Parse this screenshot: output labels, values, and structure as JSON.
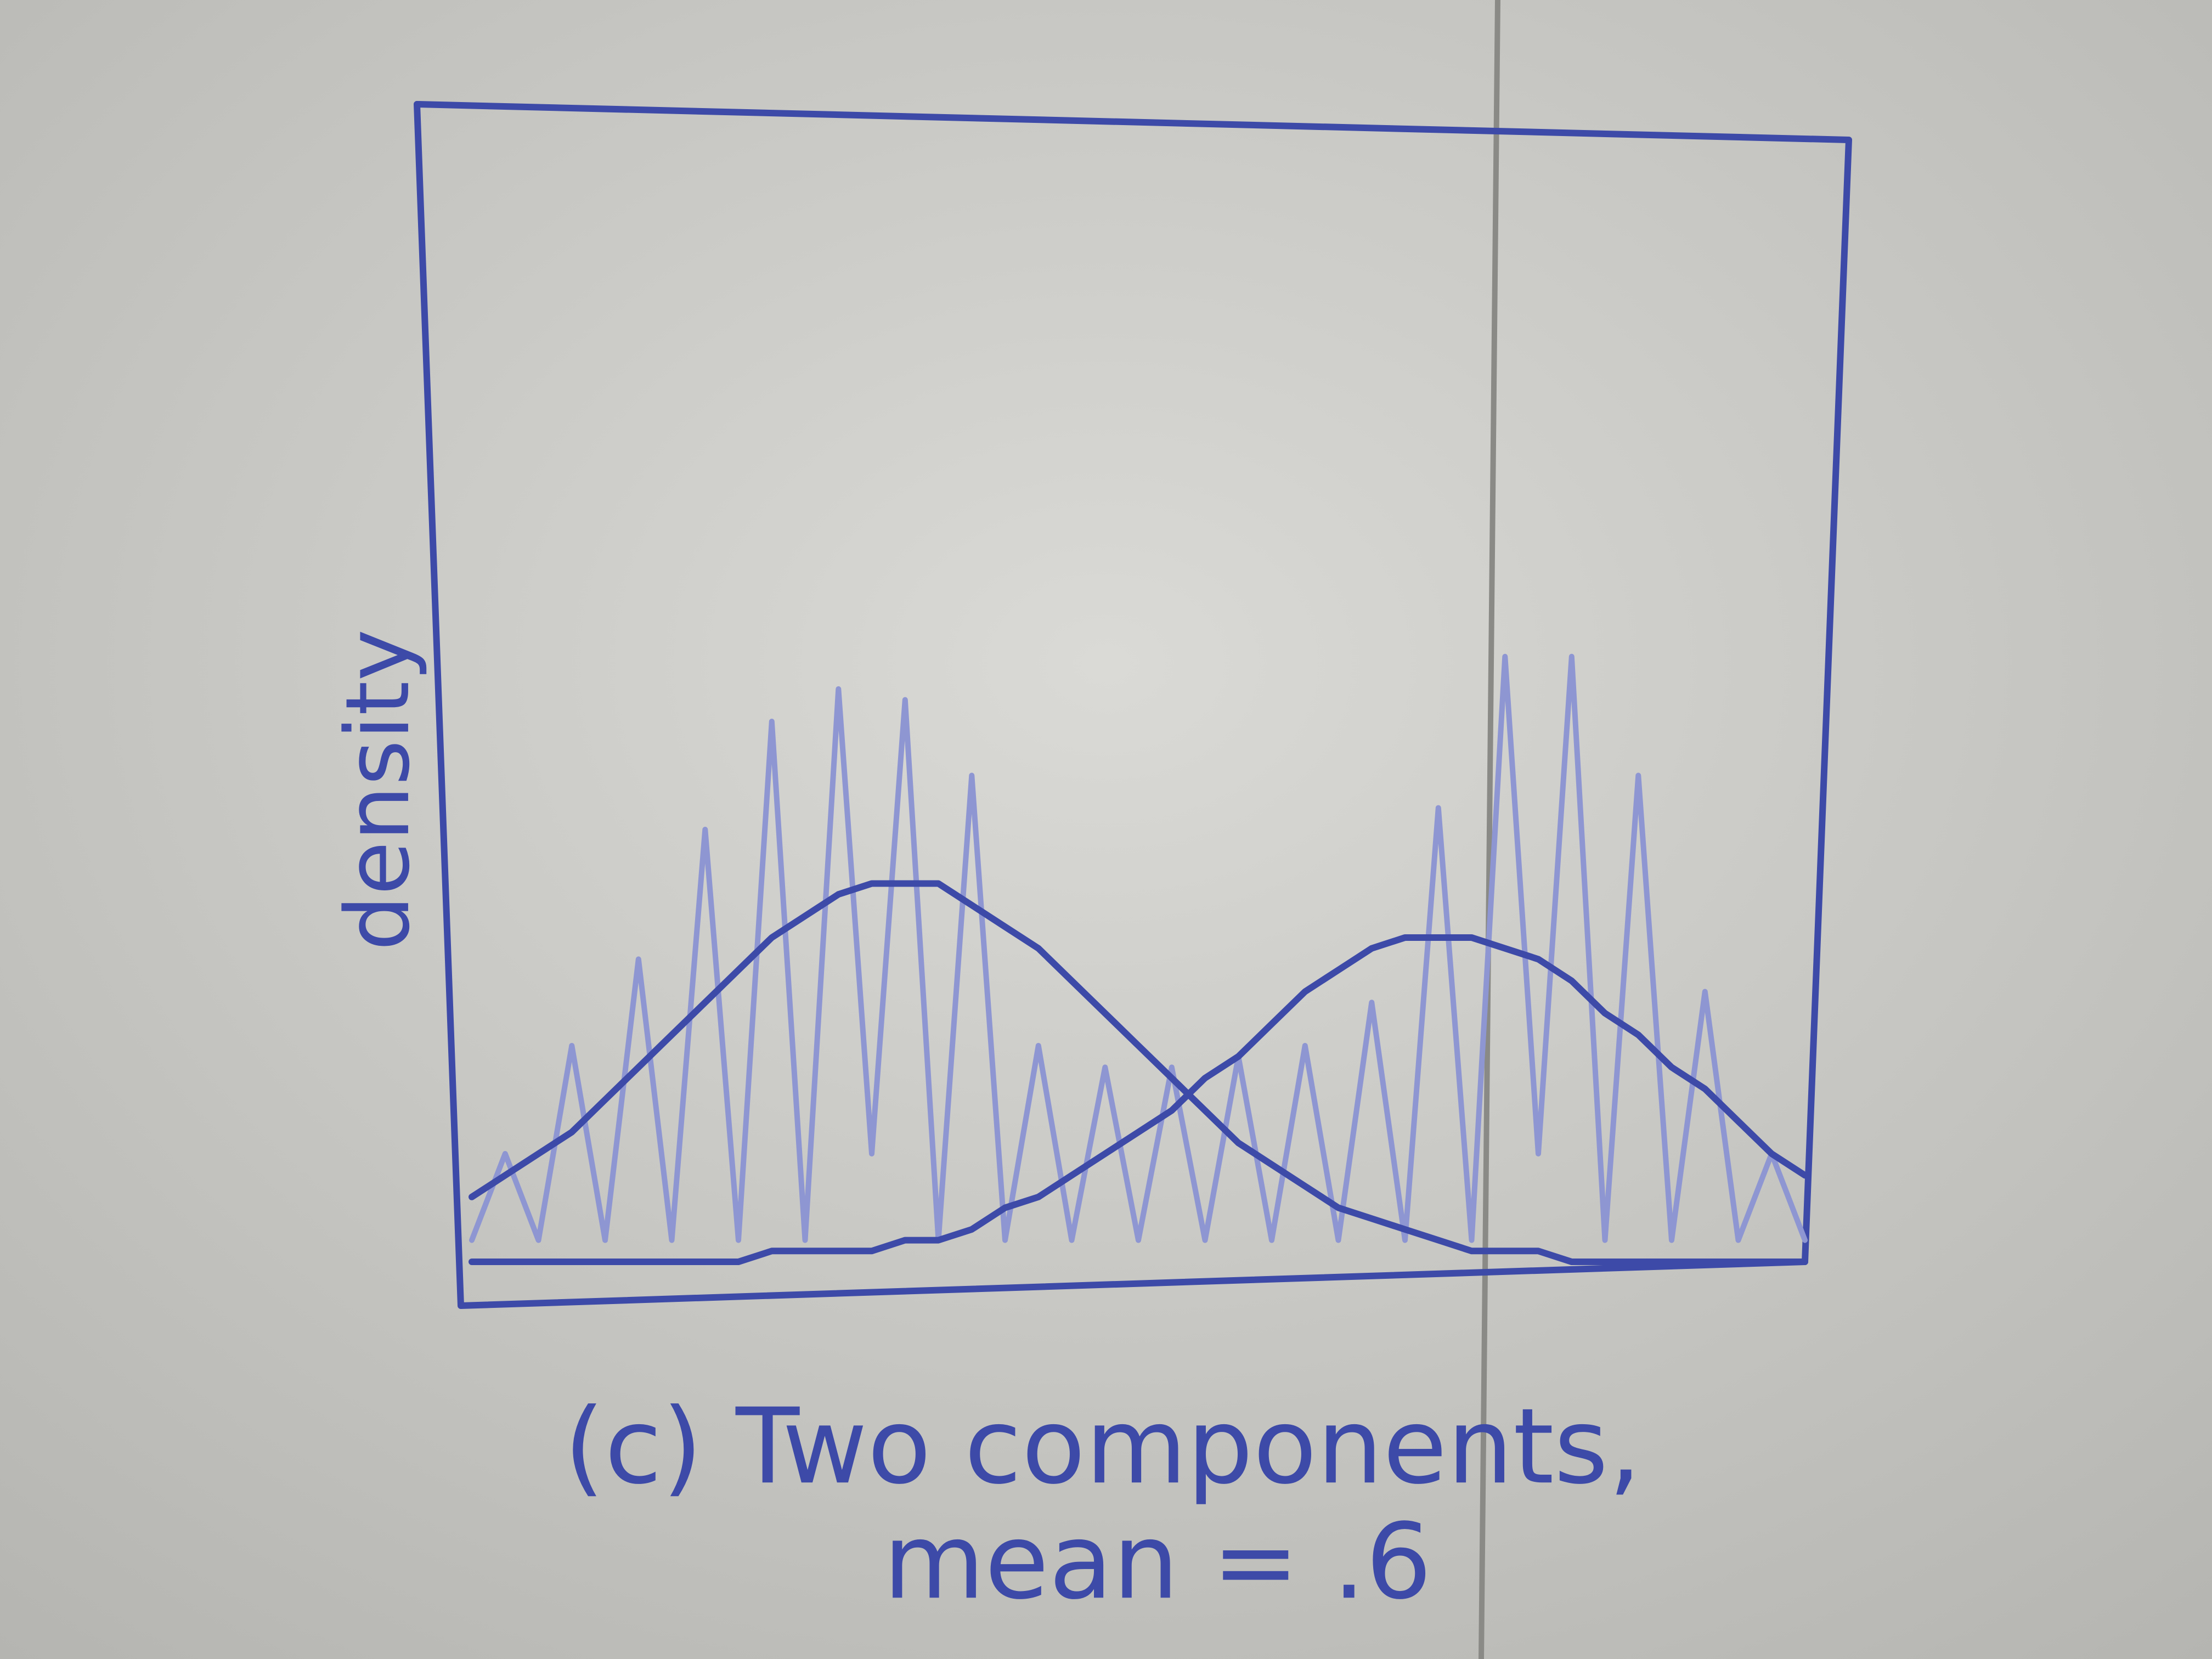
{
  "chart_data": {
    "type": "line",
    "title": [
      "(c) Two components,",
      "mean = .6"
    ],
    "ylabel": "density",
    "xlim": [
      0,
      1
    ],
    "ylim": [
      0,
      1
    ],
    "x": [
      0,
      0.025,
      0.05,
      0.075,
      0.1,
      0.125,
      0.15,
      0.175,
      0.2,
      0.225,
      0.25,
      0.275,
      0.3,
      0.325,
      0.35,
      0.375,
      0.4,
      0.425,
      0.45,
      0.475,
      0.5,
      0.525,
      0.55,
      0.575,
      0.6,
      0.625,
      0.65,
      0.675,
      0.7,
      0.725,
      0.75,
      0.775,
      0.8,
      0.825,
      0.85,
      0.875,
      0.9,
      0.925,
      0.95,
      0.975,
      1
    ],
    "series": [
      {
        "color": "#8e96d2",
        "values": [
          0.02,
          0.1,
          0.02,
          0.2,
          0.02,
          0.28,
          0.02,
          0.4,
          0.02,
          0.5,
          0.02,
          0.53,
          0.1,
          0.52,
          0.02,
          0.45,
          0.02,
          0.2,
          0.02,
          0.18,
          0.02,
          0.18,
          0.02,
          0.19,
          0.02,
          0.2,
          0.02,
          0.24,
          0.02,
          0.42,
          0.02,
          0.56,
          0.1,
          0.56,
          0.02,
          0.45,
          0.02,
          0.25,
          0.02,
          0.1,
          0.02
        ]
      },
      {
        "color": "#3d4aa8",
        "values": [
          0.06,
          0.08,
          0.1,
          0.12,
          0.15,
          0.18,
          0.21,
          0.24,
          0.27,
          0.3,
          0.32,
          0.34,
          0.35,
          0.35,
          0.35,
          0.33,
          0.31,
          0.29,
          0.26,
          0.23,
          0.2,
          0.17,
          0.14,
          0.11,
          0.09,
          0.07,
          0.05,
          0.04,
          0.03,
          0.02,
          0.01,
          0.01,
          0.01,
          0,
          0,
          0,
          0,
          0,
          0,
          0,
          0
        ]
      },
      {
        "color": "#3d4aa8",
        "values": [
          0,
          0,
          0,
          0,
          0,
          0,
          0,
          0,
          0,
          0.01,
          0.01,
          0.01,
          0.01,
          0.02,
          0.02,
          0.03,
          0.05,
          0.06,
          0.08,
          0.1,
          0.12,
          0.14,
          0.17,
          0.19,
          0.22,
          0.25,
          0.27,
          0.29,
          0.3,
          0.3,
          0.3,
          0.29,
          0.28,
          0.26,
          0.23,
          0.21,
          0.18,
          0.16,
          0.13,
          0.1,
          0.08
        ]
      }
    ]
  }
}
